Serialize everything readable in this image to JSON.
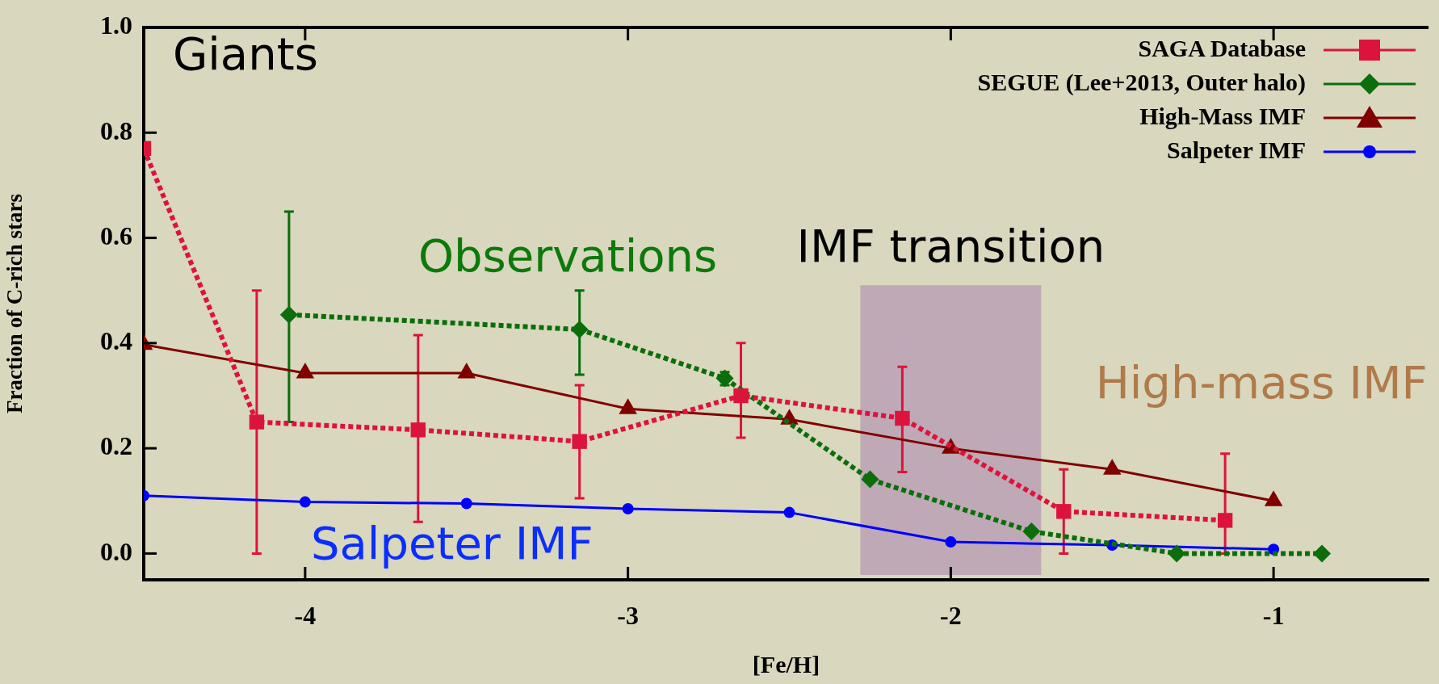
{
  "chart_data": {
    "type": "line",
    "xlabel": "[Fe/H]",
    "ylabel": "Fraction of C-rich stars",
    "xlim": [
      -4.5,
      -0.52
    ],
    "xticks": [
      -4,
      -3,
      -2,
      -1
    ],
    "ylim": [
      -0.05,
      1.0
    ],
    "yticks": [
      {
        "value": 0,
        "label": "0.0"
      },
      0.2,
      0.4,
      0.6,
      0.8,
      {
        "value": 1,
        "label": "1.0"
      }
    ],
    "grid": false,
    "legend": "top right",
    "series": [
      {
        "name": "SAGA Database",
        "color": "#dc143c",
        "marker": "square",
        "line_style": "dotted",
        "x": [
          -4.5,
          -4.15,
          -3.65,
          -3.15,
          -2.65,
          -2.15,
          -1.65,
          -1.15
        ],
        "values": [
          0.77,
          0.25,
          0.235,
          0.213,
          0.3,
          0.257,
          0.08,
          0.063
        ],
        "errors": [
          null,
          [
            0.0,
            0.5
          ],
          [
            0.06,
            0.415
          ],
          [
            0.105,
            0.32
          ],
          [
            0.22,
            0.4
          ],
          [
            0.155,
            0.355
          ],
          [
            0.0,
            0.16
          ],
          [
            0.0,
            0.19
          ]
        ]
      },
      {
        "name": "SEGUE (Lee+2013, Outer halo)",
        "color": "#0b6e0b",
        "marker": "diamond",
        "line_style": "dotted",
        "x": [
          -4.05,
          -3.15,
          -2.7,
          -2.25,
          -1.75,
          -1.3,
          -0.85
        ],
        "values": [
          0.454,
          0.426,
          0.333,
          0.141,
          0.042,
          0.0,
          0.0
        ],
        "errors": [
          [
            0.25,
            0.65
          ],
          [
            0.34,
            0.5
          ],
          [
            0.32,
            0.345
          ],
          null,
          null,
          null,
          null
        ]
      },
      {
        "name": "High-Mass IMF",
        "color": "#800000",
        "marker": "triangle",
        "line_style": "solid",
        "x": [
          -4.5,
          -4.0,
          -3.5,
          -3.0,
          -2.5,
          -2.0,
          -1.5,
          -1.0
        ],
        "values": [
          0.397,
          0.343,
          0.343,
          0.275,
          0.255,
          0.2,
          0.16,
          0.1
        ]
      },
      {
        "name": "Salpeter IMF",
        "color": "#0000ff",
        "marker": "circle",
        "line_style": "solid",
        "x": [
          -4.5,
          -4.0,
          -3.5,
          -3.0,
          -2.5,
          -2.0,
          -1.5,
          -1.0
        ],
        "values": [
          0.11,
          0.098,
          0.095,
          0.085,
          0.078,
          0.022,
          0.016,
          0.008
        ]
      }
    ],
    "bands": [
      {
        "axis": "x",
        "from": -2.28,
        "to": -1.72,
        "label": "IMF transition",
        "color": "#b496b4"
      }
    ],
    "annotations": [
      "Giants",
      "Observations",
      "High-mass IMF",
      "Salpeter IMF"
    ]
  }
}
